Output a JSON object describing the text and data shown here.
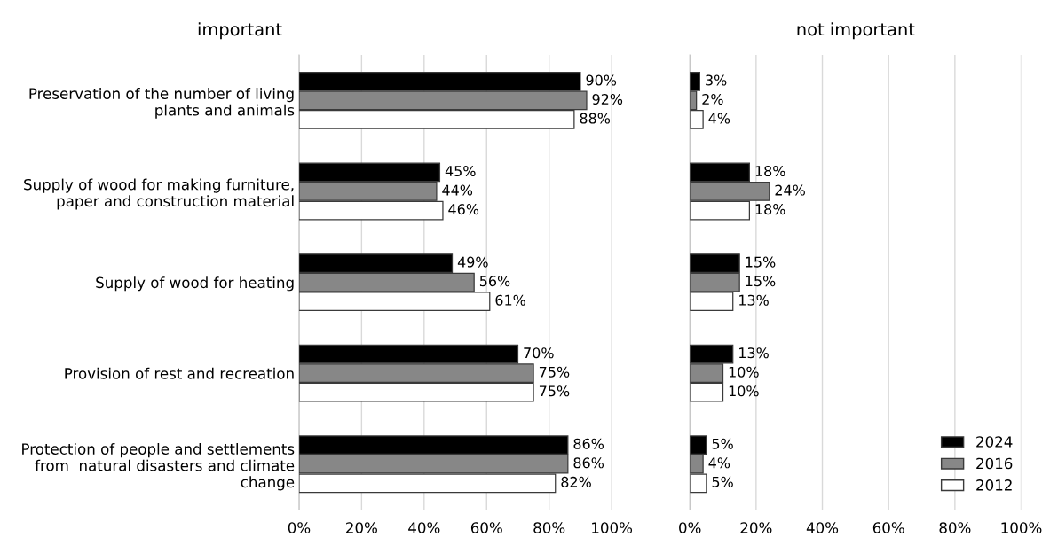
{
  "chart_data": [
    {
      "type": "bar",
      "orientation": "horizontal",
      "title": "important",
      "categories": [
        "Preservation of the number of living\nplants and animals",
        "Supply of wood for making furniture,\npaper and construction material",
        "Supply of wood for heating",
        "Provision of rest and recreation",
        "Protection of people and settlements\nfrom  natural disasters and climate\nchange"
      ],
      "series": [
        {
          "name": "2024",
          "color": "#000000",
          "values": [
            90,
            45,
            49,
            70,
            86
          ],
          "value_labels": [
            "90%",
            "45%",
            "49%",
            "70%",
            "86%"
          ]
        },
        {
          "name": "2016",
          "color": "#878787",
          "values": [
            92,
            44,
            56,
            75,
            86
          ],
          "value_labels": [
            "92%",
            "44%",
            "56%",
            "75%",
            "86%"
          ]
        },
        {
          "name": "2012",
          "color": "#ffffff",
          "values": [
            88,
            46,
            61,
            75,
            82
          ],
          "value_labels": [
            "88%",
            "46%",
            "61%",
            "75%",
            "82%"
          ]
        }
      ],
      "xlim": [
        0,
        100
      ],
      "xticks": [
        {
          "value": 0,
          "label": "0%"
        },
        {
          "value": 20,
          "label": "20%"
        },
        {
          "value": 40,
          "label": "40%"
        },
        {
          "value": 60,
          "label": "60%"
        },
        {
          "value": 80,
          "label": "80%"
        },
        {
          "value": 100,
          "label": "100%"
        }
      ],
      "grid": "x",
      "legend": "bottom right"
    },
    {
      "type": "bar",
      "orientation": "horizontal",
      "title": "not important",
      "categories": [
        null,
        null,
        null,
        null,
        null
      ],
      "tick_labels": "x",
      "series": [
        {
          "name": "2024",
          "color": "#000000",
          "values": [
            3,
            18,
            15,
            13,
            5
          ],
          "value_labels": [
            "3%",
            "18%",
            "15%",
            "13%",
            "5%"
          ]
        },
        {
          "name": "2016",
          "color": "#878787",
          "values": [
            2,
            24,
            15,
            10,
            4
          ],
          "value_labels": [
            "2%",
            "24%",
            "15%",
            "10%",
            "4%"
          ]
        },
        {
          "name": "2012",
          "color": "#ffffff",
          "values": [
            4,
            18,
            13,
            10,
            5
          ],
          "value_labels": [
            "4%",
            "18%",
            "13%",
            "10%",
            "5%"
          ]
        }
      ],
      "xlim": [
        0,
        100
      ],
      "xticks": [
        {
          "value": 0,
          "label": "0%"
        },
        {
          "value": 20,
          "label": "20%"
        },
        {
          "value": 40,
          "label": "40%"
        },
        {
          "value": 60,
          "label": "60%"
        },
        {
          "value": 80,
          "label": "80%"
        },
        {
          "value": 100,
          "label": "100%"
        }
      ],
      "grid": "x"
    }
  ]
}
